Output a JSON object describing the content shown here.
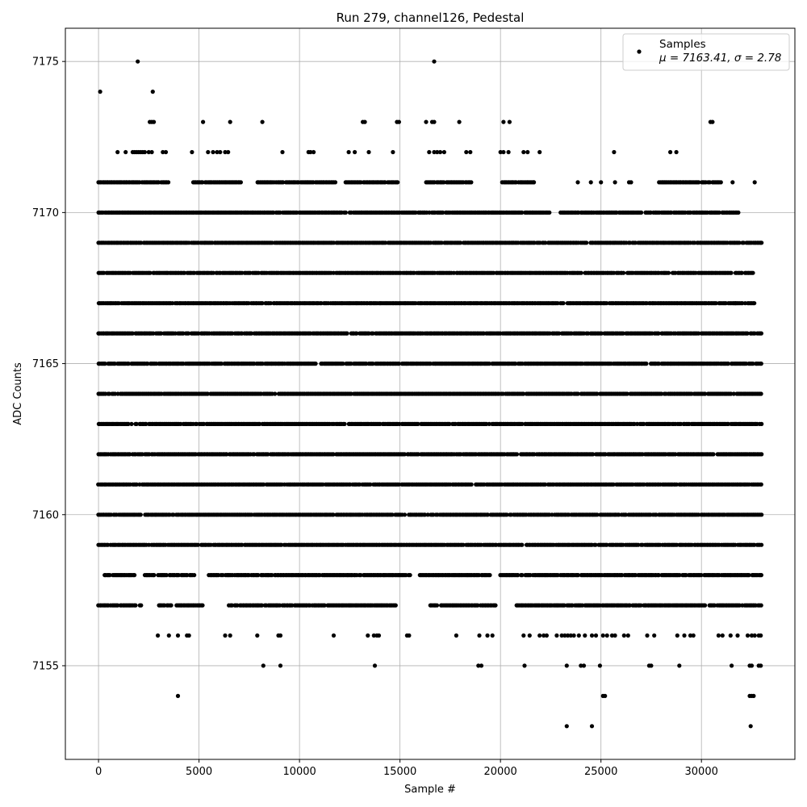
{
  "chart_data": {
    "type": "scatter",
    "title": "Run 279, channel126, Pedestal",
    "xlabel": "Sample #",
    "ylabel": "ADC Counts",
    "xlim": [
      -1650,
      34650
    ],
    "ylim": [
      7151.9,
      7176.1
    ],
    "xticks": [
      0,
      5000,
      10000,
      15000,
      20000,
      25000,
      30000
    ],
    "yticks": [
      7155,
      7160,
      7165,
      7170,
      7175
    ],
    "grid": true,
    "legend": {
      "position": "top-right",
      "label": "Samples",
      "stats": "μ = 7163.41, σ = 2.78"
    },
    "colors": {
      "marker": "#000000",
      "grid": "#b0b0b0",
      "axes": "#000000"
    },
    "mean": 7163.41,
    "sigma": 2.78,
    "n_samples": 33000,
    "series": [
      {
        "name": "Samples",
        "bands": [
          {
            "y": 7157,
            "ranges": [
              [
                0,
                2200
              ],
              [
                3000,
                5200
              ],
              [
                6500,
                14800
              ],
              [
                16500,
                19800
              ],
              [
                20800,
                33000
              ]
            ]
          },
          {
            "y": 7158,
            "ranges": [
              [
                300,
                1800
              ],
              [
                2300,
                4800
              ],
              [
                5500,
                15500
              ],
              [
                16000,
                19500
              ],
              [
                20000,
                33000
              ]
            ]
          },
          {
            "y": 7159,
            "ranges": [
              [
                0,
                33000
              ]
            ]
          },
          {
            "y": 7160,
            "ranges": [
              [
                0,
                33000
              ]
            ]
          },
          {
            "y": 7161,
            "ranges": [
              [
                0,
                33000
              ]
            ]
          },
          {
            "y": 7162,
            "ranges": [
              [
                0,
                33000
              ]
            ]
          },
          {
            "y": 7163,
            "ranges": [
              [
                0,
                33000
              ]
            ]
          },
          {
            "y": 7164,
            "ranges": [
              [
                0,
                33000
              ]
            ]
          },
          {
            "y": 7165,
            "ranges": [
              [
                0,
                33000
              ]
            ]
          },
          {
            "y": 7166,
            "ranges": [
              [
                0,
                33000
              ]
            ]
          },
          {
            "y": 7167,
            "ranges": [
              [
                0,
                32700
              ]
            ]
          },
          {
            "y": 7168,
            "ranges": [
              [
                0,
                32600
              ]
            ]
          },
          {
            "y": 7169,
            "ranges": [
              [
                0,
                33000
              ]
            ]
          },
          {
            "y": 7170,
            "ranges": [
              [
                0,
                22500
              ],
              [
                23000,
                31900
              ]
            ]
          },
          {
            "y": 7171,
            "ranges": [
              [
                0,
                3500
              ],
              [
                4700,
                7200
              ],
              [
                7900,
                11800
              ],
              [
                12300,
                15000
              ],
              [
                16300,
                18600
              ],
              [
                20100,
                21700
              ],
              [
                27900,
                31000
              ]
            ]
          }
        ],
        "points": [
          [
            80,
            7174
          ],
          [
            1950,
            7175
          ],
          [
            2700,
            7174
          ],
          [
            16700,
            7175
          ],
          [
            2550,
            7173
          ],
          [
            2650,
            7173
          ],
          [
            2750,
            7173
          ],
          [
            5200,
            7173
          ],
          [
            6550,
            7173
          ],
          [
            8150,
            7173
          ],
          [
            13150,
            7173
          ],
          [
            13250,
            7173
          ],
          [
            14850,
            7173
          ],
          [
            14950,
            7173
          ],
          [
            16300,
            7173
          ],
          [
            16600,
            7173
          ],
          [
            16700,
            7173
          ],
          [
            17950,
            7173
          ],
          [
            20150,
            7173
          ],
          [
            20450,
            7173
          ],
          [
            30450,
            7173
          ],
          [
            30550,
            7173
          ],
          [
            950,
            7172
          ],
          [
            1350,
            7172
          ],
          [
            1700,
            7172
          ],
          [
            1800,
            7172
          ],
          [
            1900,
            7172
          ],
          [
            2000,
            7172
          ],
          [
            2100,
            7172
          ],
          [
            2200,
            7172
          ],
          [
            2300,
            7172
          ],
          [
            2500,
            7172
          ],
          [
            2650,
            7172
          ],
          [
            3200,
            7172
          ],
          [
            3350,
            7172
          ],
          [
            4650,
            7172
          ],
          [
            5450,
            7172
          ],
          [
            5700,
            7172
          ],
          [
            5900,
            7172
          ],
          [
            6050,
            7172
          ],
          [
            6300,
            7172
          ],
          [
            6450,
            7172
          ],
          [
            9150,
            7172
          ],
          [
            10450,
            7172
          ],
          [
            10550,
            7172
          ],
          [
            10700,
            7172
          ],
          [
            12450,
            7172
          ],
          [
            12750,
            7172
          ],
          [
            13450,
            7172
          ],
          [
            14650,
            7172
          ],
          [
            16450,
            7172
          ],
          [
            16700,
            7172
          ],
          [
            16850,
            7172
          ],
          [
            17000,
            7172
          ],
          [
            17200,
            7172
          ],
          [
            18300,
            7172
          ],
          [
            18500,
            7172
          ],
          [
            20000,
            7172
          ],
          [
            20150,
            7172
          ],
          [
            20400,
            7172
          ],
          [
            21150,
            7172
          ],
          [
            21350,
            7172
          ],
          [
            21950,
            7172
          ],
          [
            25650,
            7172
          ],
          [
            28450,
            7172
          ],
          [
            28750,
            7172
          ],
          [
            21650,
            7171
          ],
          [
            23850,
            7171
          ],
          [
            24500,
            7171
          ],
          [
            25000,
            7171
          ],
          [
            25700,
            7171
          ],
          [
            26400,
            7171
          ],
          [
            26500,
            7171
          ],
          [
            31550,
            7171
          ],
          [
            32650,
            7171
          ],
          [
            32950,
            7169
          ],
          [
            31700,
            7167
          ],
          [
            3950,
            7154
          ],
          [
            25100,
            7154
          ],
          [
            25200,
            7154
          ],
          [
            32400,
            7154
          ],
          [
            32500,
            7154
          ],
          [
            32600,
            7154
          ],
          [
            23300,
            7153
          ],
          [
            24550,
            7153
          ],
          [
            32450,
            7153
          ],
          [
            8200,
            7155
          ],
          [
            9050,
            7155
          ],
          [
            13750,
            7155
          ],
          [
            18900,
            7155
          ],
          [
            19050,
            7155
          ],
          [
            21200,
            7155
          ],
          [
            23300,
            7155
          ],
          [
            24000,
            7155
          ],
          [
            24150,
            7155
          ],
          [
            24950,
            7155
          ],
          [
            27400,
            7155
          ],
          [
            27500,
            7155
          ],
          [
            28900,
            7155
          ],
          [
            31500,
            7155
          ],
          [
            32400,
            7155
          ],
          [
            32500,
            7155
          ],
          [
            32850,
            7155
          ],
          [
            32950,
            7155
          ],
          [
            2950,
            7156
          ],
          [
            3500,
            7156
          ],
          [
            3950,
            7156
          ],
          [
            4400,
            7156
          ],
          [
            4500,
            7156
          ],
          [
            6300,
            7156
          ],
          [
            6550,
            7156
          ],
          [
            7900,
            7156
          ],
          [
            8950,
            7156
          ],
          [
            9050,
            7156
          ],
          [
            11700,
            7156
          ],
          [
            13400,
            7156
          ],
          [
            13700,
            7156
          ],
          [
            13850,
            7156
          ],
          [
            13950,
            7156
          ],
          [
            15350,
            7156
          ],
          [
            15450,
            7156
          ],
          [
            17800,
            7156
          ],
          [
            18950,
            7156
          ],
          [
            19350,
            7156
          ],
          [
            19600,
            7156
          ],
          [
            21150,
            7156
          ],
          [
            21450,
            7156
          ],
          [
            21950,
            7156
          ],
          [
            22150,
            7156
          ],
          [
            22300,
            7156
          ],
          [
            22800,
            7156
          ],
          [
            23050,
            7156
          ],
          [
            23200,
            7156
          ],
          [
            23350,
            7156
          ],
          [
            23500,
            7156
          ],
          [
            23650,
            7156
          ],
          [
            23900,
            7156
          ],
          [
            24200,
            7156
          ],
          [
            24550,
            7156
          ],
          [
            24750,
            7156
          ],
          [
            25100,
            7156
          ],
          [
            25300,
            7156
          ],
          [
            25550,
            7156
          ],
          [
            25700,
            7156
          ],
          [
            26150,
            7156
          ],
          [
            26350,
            7156
          ],
          [
            27300,
            7156
          ],
          [
            27650,
            7156
          ],
          [
            28800,
            7156
          ],
          [
            29150,
            7156
          ],
          [
            29450,
            7156
          ],
          [
            29600,
            7156
          ],
          [
            30850,
            7156
          ],
          [
            31050,
            7156
          ],
          [
            31450,
            7156
          ],
          [
            31800,
            7156
          ],
          [
            32300,
            7156
          ],
          [
            32500,
            7156
          ],
          [
            32650,
            7156
          ],
          [
            32850,
            7156
          ],
          [
            32950,
            7156
          ]
        ]
      }
    ]
  }
}
